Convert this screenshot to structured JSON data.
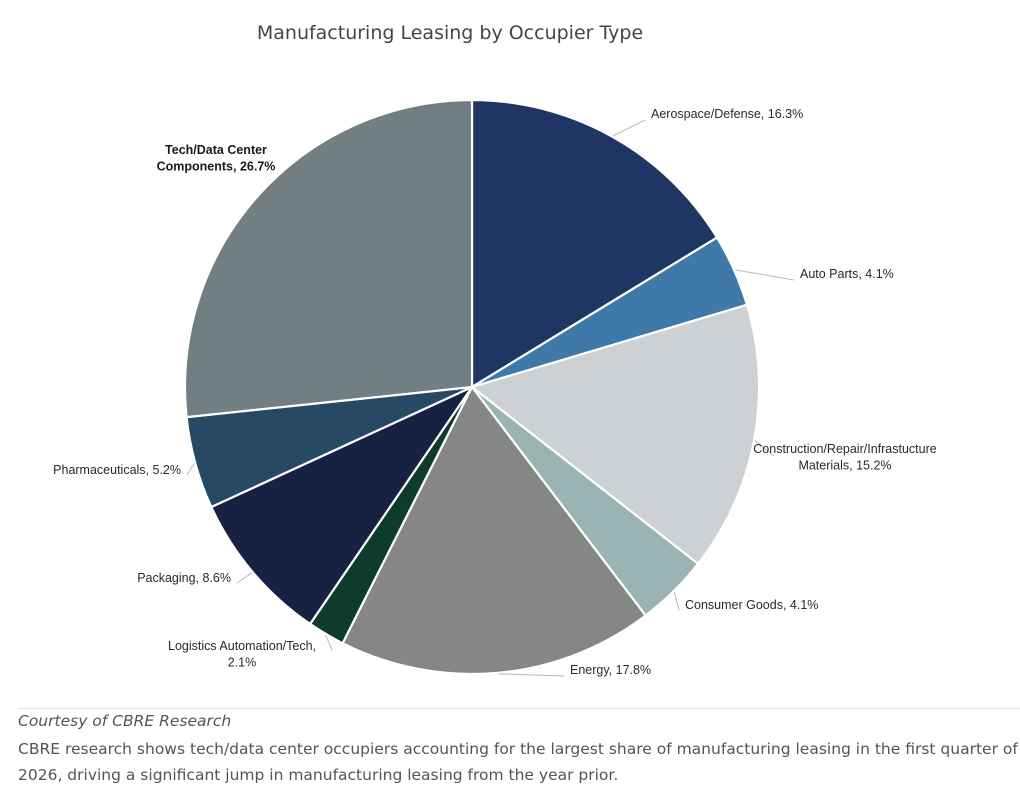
{
  "chart_data": {
    "type": "pie",
    "title": "Manufacturing Leasing by Occupier Type",
    "slices": [
      {
        "label": [
          "Aerospace/Defense, 16.3%"
        ],
        "value": 16.3,
        "color": "#1f3564"
      },
      {
        "label": [
          "Auto Parts, 4.1%"
        ],
        "value": 4.1,
        "color": "#3e79a8"
      },
      {
        "label": [
          "Construction/Repair/Infrastucture",
          "Materials, 15.2%"
        ],
        "value": 15.2,
        "color": "#cdd1d4"
      },
      {
        "label": [
          "Consumer Goods, 4.1%"
        ],
        "value": 4.1,
        "color": "#9ab4b4"
      },
      {
        "label": [
          "Energy, 17.8%"
        ],
        "value": 17.8,
        "color": "#848784"
      },
      {
        "label": [
          "Logistics Automation/Tech,",
          "2.1%"
        ],
        "value": 2.1,
        "color": "#0d3c2c"
      },
      {
        "label": [
          "Packaging, 8.6%"
        ],
        "value": 8.6,
        "color": "#172141"
      },
      {
        "label": [
          "Pharmaceuticals, 5.2%"
        ],
        "value": 5.2,
        "color": "#274963"
      },
      {
        "label": [
          "Tech/Data Center",
          "Components, 26.7%"
        ],
        "value": 26.7,
        "color": "#727f82",
        "bold": true
      }
    ]
  },
  "caption": {
    "credit": "Courtesy of CBRE Research",
    "text": "CBRE research shows tech/data center occupiers accounting for the largest share of manufacturing leasing in the first quarter of 2026, driving a significant jump in manufacturing leasing from the year prior."
  }
}
